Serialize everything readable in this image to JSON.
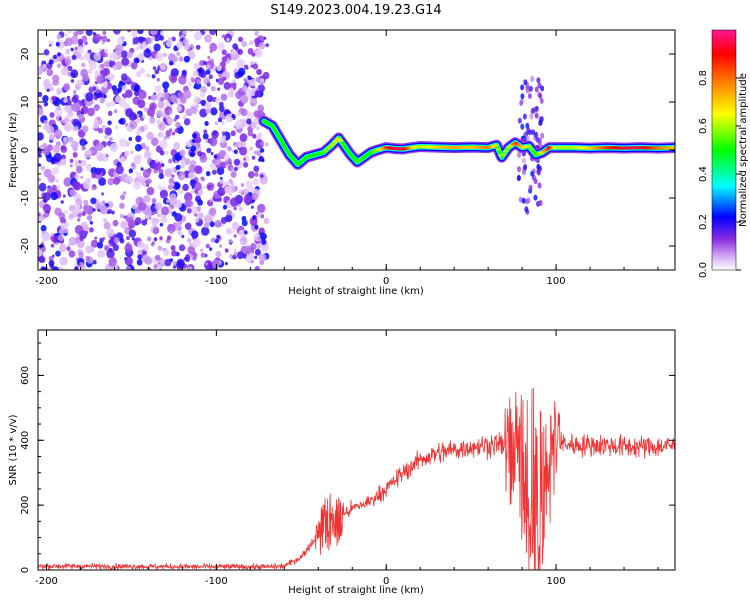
{
  "title": "S149.2023.004.19.23.G14",
  "chart_data": [
    {
      "type": "heatmap",
      "xlabel": "Height of straight line (km)",
      "ylabel": "Frequency (Hz)",
      "xlim": [
        -205,
        170
      ],
      "ylim": [
        -25,
        25
      ],
      "x_ticks": [
        -200,
        -100,
        0,
        100
      ],
      "y_ticks": [
        -20,
        -10,
        0,
        10,
        20
      ],
      "colorbar": {
        "label": "Normalized spectral amplitude",
        "range": [
          0.0,
          1.0
        ],
        "ticks": [
          0.0,
          0.2,
          0.4,
          0.6,
          0.8
        ],
        "colors": [
          "#ffffff",
          "#d9b3f5",
          "#8a2be2",
          "#0000ff",
          "#00ffff",
          "#00ff00",
          "#ffff00",
          "#ff8000",
          "#ff0000",
          "#ff1493"
        ]
      },
      "noise_region_x": [
        -205,
        -70
      ],
      "ridge": {
        "x": [
          -72,
          -67,
          -62,
          -57,
          -52,
          -47,
          -42,
          -37,
          -32,
          -28,
          -25,
          -21,
          -17,
          -13,
          -9,
          -5,
          0,
          5,
          10,
          15,
          20,
          30,
          40,
          50,
          60,
          65,
          68,
          72,
          76,
          80,
          84,
          88,
          92,
          96,
          100,
          110,
          120,
          130,
          140,
          150,
          160,
          170
        ],
        "y": [
          6,
          5,
          2,
          -1,
          -3,
          -1.5,
          -1,
          -0.5,
          1,
          2.5,
          1,
          -1,
          -2.5,
          -1.5,
          -0.5,
          0,
          0.5,
          0.3,
          0.2,
          0.5,
          0.7,
          0.6,
          0.5,
          0.6,
          0.5,
          1,
          -1.5,
          0.5,
          1.5,
          0.5,
          0.8,
          -1,
          -0.5,
          0.5,
          0.5,
          0.5,
          0.4,
          0.5,
          0.4,
          0.5,
          0.4,
          0.5
        ],
        "amplitude": [
          0.45,
          0.4,
          0.4,
          0.35,
          0.3,
          0.35,
          0.35,
          0.55,
          0.6,
          0.7,
          0.5,
          0.4,
          0.55,
          0.5,
          0.5,
          0.6,
          0.85,
          0.95,
          0.95,
          0.7,
          0.6,
          0.7,
          0.75,
          0.7,
          0.8,
          0.6,
          0.6,
          0.6,
          0.85,
          0.7,
          0.6,
          0.5,
          0.7,
          0.9,
          0.6,
          0.6,
          0.7,
          0.85,
          0.95,
          0.95,
          0.8,
          0.7
        ]
      },
      "spread_x": [
        78,
        92
      ],
      "spread_y": [
        -13,
        15
      ]
    },
    {
      "type": "line",
      "xlabel": "Height of straight line (km)",
      "ylabel": "SNR (10 * v/v)",
      "xlim": [
        -205,
        170
      ],
      "ylim": [
        0,
        740
      ],
      "x_ticks": [
        -200,
        -100,
        0,
        100
      ],
      "y_ticks": [
        0,
        200,
        400,
        600
      ],
      "color": "#ee3333",
      "envelope": {
        "x": [
          -205,
          -100,
          -70,
          -60,
          -50,
          -40,
          -30,
          -20,
          -10,
          0,
          10,
          20,
          30,
          40,
          50,
          60,
          65,
          70,
          75,
          80,
          85,
          90,
          95,
          100,
          105,
          110,
          120,
          130,
          140,
          150,
          160,
          170
        ],
        "y": [
          12,
          10,
          10,
          12,
          40,
          110,
          150,
          190,
          210,
          250,
          300,
          340,
          360,
          370,
          380,
          385,
          390,
          380,
          360,
          300,
          270,
          230,
          300,
          390,
          390,
          385,
          385,
          385,
          380,
          380,
          380,
          385
        ]
      },
      "burst_regions": [
        {
          "x": [
            -42,
            -25
          ],
          "amp": 120
        },
        {
          "x": [
            70,
            102
          ],
          "amp": 330
        }
      ]
    }
  ]
}
